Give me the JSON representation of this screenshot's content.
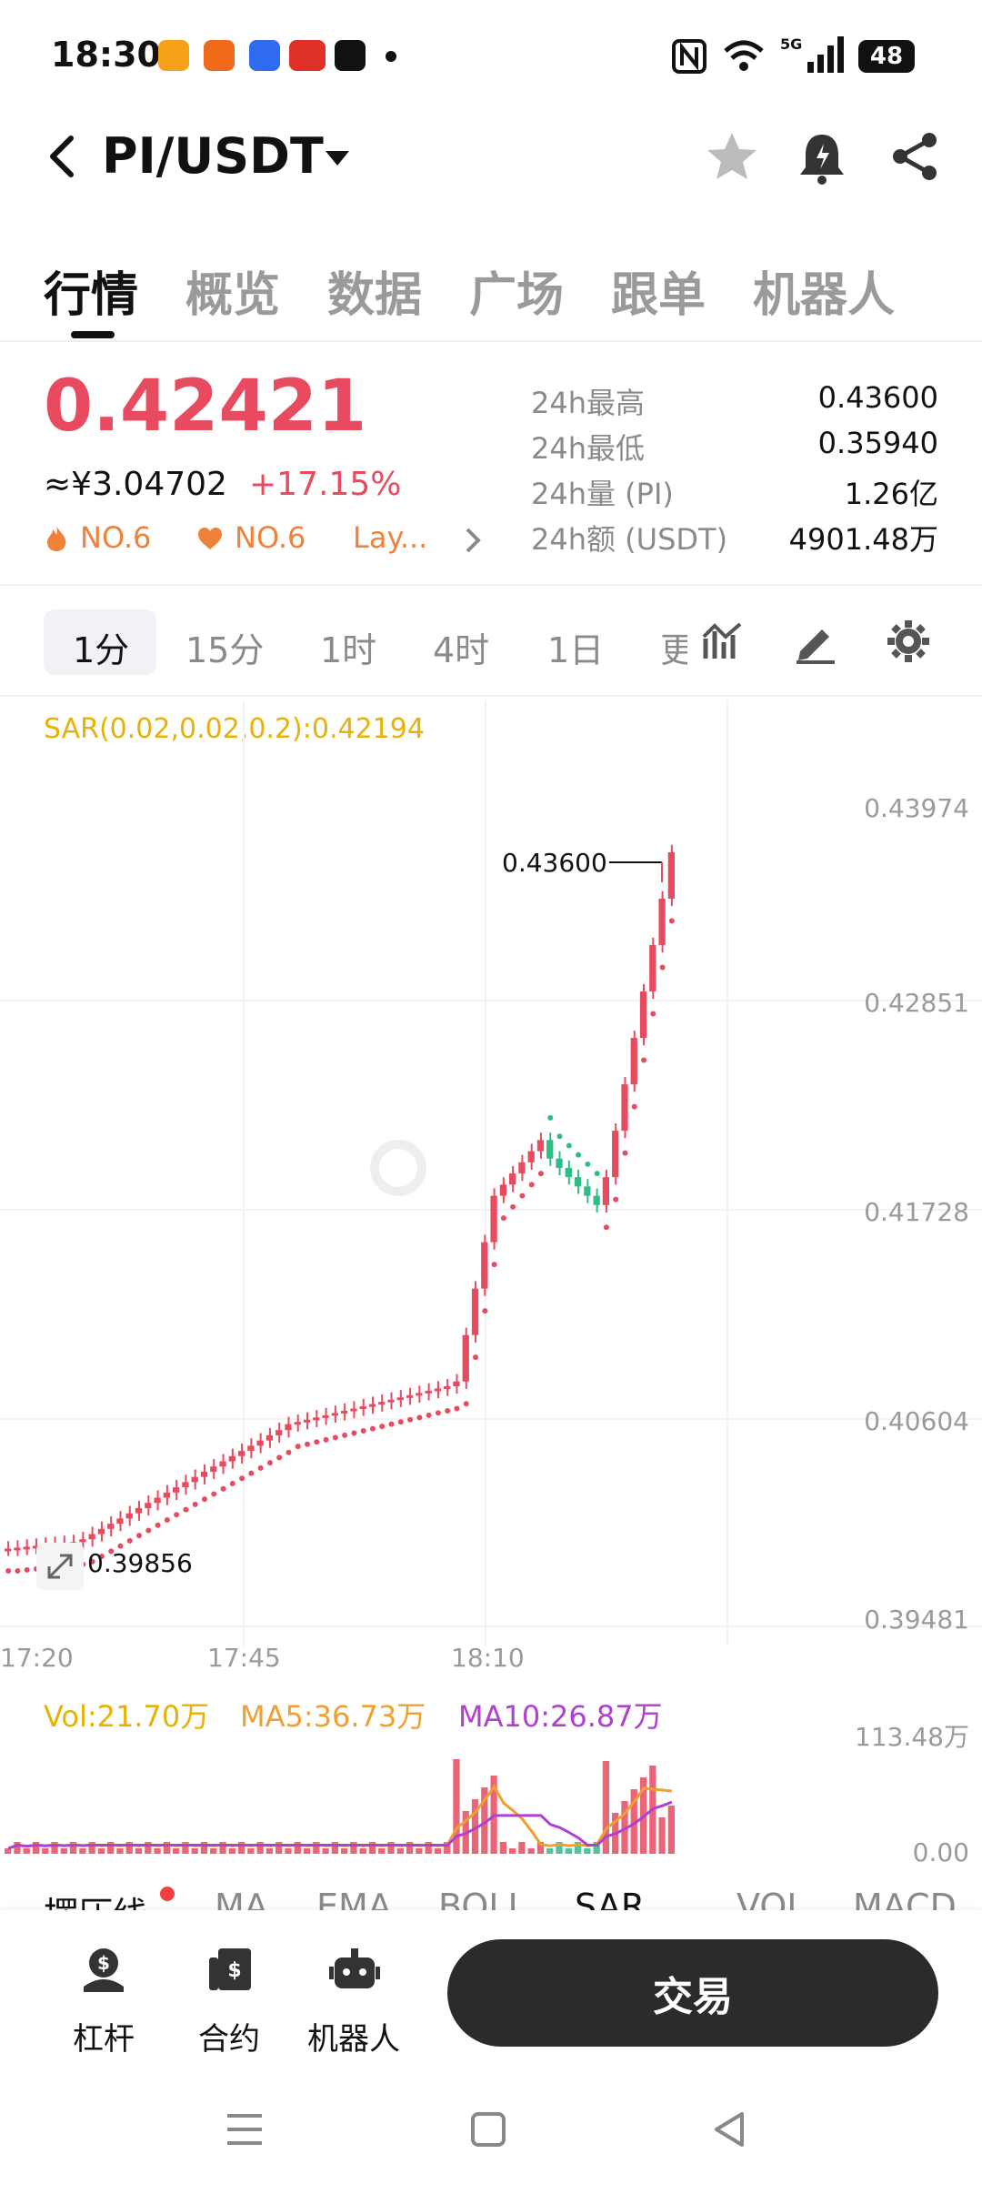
{
  "status_bar": {
    "time": "18:30",
    "battery": "48"
  },
  "header": {
    "pair": "PI/USDT"
  },
  "tabs": [
    "行情",
    "概览",
    "数据",
    "广场",
    "跟单",
    "机器人"
  ],
  "price": {
    "last": "0.42421",
    "cny": "≈¥3.04702",
    "change": "+17.15%",
    "badge1": "NO.6",
    "badge2": "NO.6",
    "badge3": "Lay...",
    "stats": [
      {
        "label": "24h最高",
        "value": "0.43600"
      },
      {
        "label": "24h最低",
        "value": "0.35940"
      },
      {
        "label": "24h量 (PI)",
        "value": "1.26亿"
      },
      {
        "label": "24h额 (USDT)",
        "value": "4901.48万"
      }
    ]
  },
  "timeframes": [
    "1分",
    "15分",
    "1时",
    "4时",
    "1日",
    "更"
  ],
  "chart": {
    "sar_label": "SAR(0.02,0.02,0.2):0.42194",
    "y_ticks": [
      "0.43974",
      "0.42851",
      "0.41728",
      "0.40604",
      "0.39481"
    ],
    "x_ticks": [
      "17:20",
      "17:45",
      "18:10"
    ],
    "high_label": "0.43600",
    "low_label": "0.39856",
    "vol_label": "Vol:21.70万",
    "ma5_label": "MA5:36.73万",
    "ma10_label": "MA10:26.87万",
    "vol_max": "113.48万",
    "vol_min": "0.00",
    "colors": {
      "up": "#e84a5f",
      "down": "#2ebd85",
      "sar_up": "#e84a5f",
      "sar_down": "#2ebd85",
      "ma5": "#f0a030",
      "ma10": "#b040d0"
    }
  },
  "indicators": [
    "摆压线",
    "MA",
    "EMA",
    "BOLL",
    "SAR",
    "VOL",
    "MACD"
  ],
  "bottom": {
    "leverage": "杠杆",
    "contract": "合约",
    "robot": "机器人",
    "trade": "交易"
  }
}
